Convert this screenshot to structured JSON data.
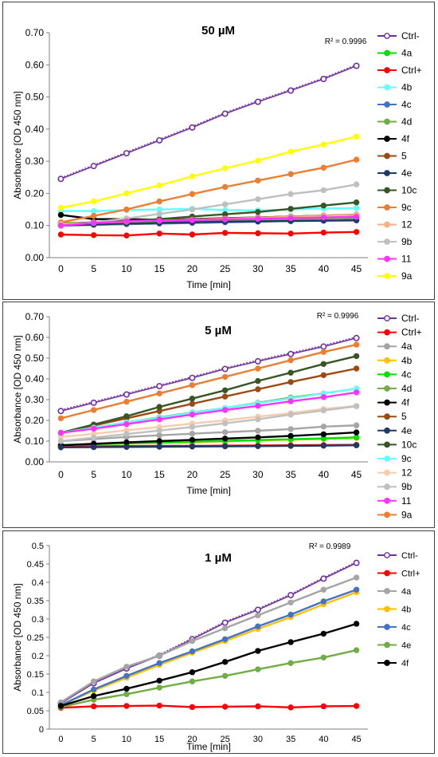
{
  "chart_data": [
    {
      "type": "line",
      "title": "50 µM",
      "annotation": "R² = 0.9996",
      "xlabel": "Time [min]",
      "ylabel": "Absorbance [OD 450 nm]",
      "x": [
        0,
        5,
        10,
        15,
        20,
        25,
        30,
        35,
        40,
        45
      ],
      "xticks": [
        "0",
        "5",
        "10",
        "15",
        "20",
        "25",
        "30",
        "35",
        "40",
        "45"
      ],
      "ylim": [
        0,
        0.7
      ],
      "yticks": [
        "0.00",
        "0.10",
        "0.20",
        "0.30",
        "0.40",
        "0.50",
        "0.60",
        "0.70"
      ],
      "grid": false,
      "legend": "right",
      "series": [
        {
          "name": "Ctrl-",
          "color": "#7030A0",
          "dotted": true,
          "values": [
            0.245,
            0.285,
            0.325,
            0.365,
            0.405,
            0.448,
            0.485,
            0.52,
            0.556,
            0.597
          ]
        },
        {
          "name": "4a",
          "color": "#00E000",
          "values": [
            0.108,
            0.108,
            0.11,
            0.112,
            0.114,
            0.116,
            0.118,
            0.12,
            0.122,
            0.124
          ]
        },
        {
          "name": "Ctrl+",
          "color": "#FF0000",
          "values": [
            0.072,
            0.07,
            0.069,
            0.075,
            0.072,
            0.077,
            0.076,
            0.075,
            0.078,
            0.08
          ]
        },
        {
          "name": "4b",
          "color": "#66FFFF",
          "values": [
            0.145,
            0.145,
            0.148,
            0.15,
            0.152,
            0.148,
            0.147,
            0.15,
            0.153,
            0.154
          ]
        },
        {
          "name": "4c",
          "color": "#4472C4",
          "values": [
            0.1,
            0.102,
            0.104,
            0.106,
            0.108,
            0.11,
            0.112,
            0.114,
            0.116,
            0.118
          ]
        },
        {
          "name": "4d",
          "color": "#70AD47",
          "values": [
            0.1,
            0.102,
            0.105,
            0.108,
            0.11,
            0.113,
            0.116,
            0.119,
            0.122,
            0.125
          ]
        },
        {
          "name": "4f",
          "color": "#000000",
          "values": [
            0.133,
            0.12,
            0.12,
            0.118,
            0.12,
            0.123,
            0.125,
            0.128,
            0.13,
            0.132
          ]
        },
        {
          "name": "5",
          "color": "#9C4A14",
          "values": [
            0.105,
            0.11,
            0.113,
            0.116,
            0.119,
            0.122,
            0.125,
            0.128,
            0.131,
            0.134
          ]
        },
        {
          "name": "4e",
          "color": "#1F3864",
          "values": [
            0.1,
            0.103,
            0.106,
            0.108,
            0.11,
            0.112,
            0.113,
            0.114,
            0.115,
            0.116
          ]
        },
        {
          "name": "10c",
          "color": "#375623",
          "values": [
            0.105,
            0.11,
            0.115,
            0.12,
            0.128,
            0.135,
            0.142,
            0.152,
            0.162,
            0.172
          ]
        },
        {
          "name": "9c",
          "color": "#ED7D31",
          "values": [
            0.11,
            0.13,
            0.15,
            0.175,
            0.198,
            0.22,
            0.24,
            0.26,
            0.28,
            0.305
          ]
        },
        {
          "name": "12",
          "color": "#F4B183",
          "values": [
            0.105,
            0.108,
            0.112,
            0.115,
            0.118,
            0.121,
            0.124,
            0.127,
            0.13,
            0.133
          ]
        },
        {
          "name": "9b",
          "color": "#BFBFBF",
          "values": [
            0.1,
            0.11,
            0.122,
            0.136,
            0.15,
            0.166,
            0.182,
            0.198,
            0.21,
            0.228
          ]
        },
        {
          "name": "11",
          "color": "#FF33FF",
          "values": [
            0.1,
            0.108,
            0.113,
            0.115,
            0.117,
            0.119,
            0.121,
            0.123,
            0.125,
            0.127
          ]
        },
        {
          "name": "9a",
          "color": "#FFFF00",
          "values": [
            0.155,
            0.175,
            0.2,
            0.225,
            0.253,
            0.278,
            0.302,
            0.33,
            0.352,
            0.377
          ]
        }
      ]
    },
    {
      "type": "line",
      "title": "5 µM",
      "annotation": "R² = 0.9996",
      "xlabel": "Time [min]",
      "ylabel": "Absorbance [OD 450 nm]",
      "x": [
        0,
        5,
        10,
        15,
        20,
        25,
        30,
        35,
        40,
        45
      ],
      "xticks": [
        "0",
        "5",
        "10",
        "15",
        "20",
        "25",
        "30",
        "35",
        "40",
        "45"
      ],
      "ylim": [
        0,
        0.7
      ],
      "yticks": [
        "0.00",
        "0.10",
        "0.20",
        "0.30",
        "0.40",
        "0.50",
        "0.60",
        "0.70"
      ],
      "grid": false,
      "legend": "right",
      "series": [
        {
          "name": "Ctrl-",
          "color": "#7030A0",
          "dotted": true,
          "values": [
            0.245,
            0.285,
            0.325,
            0.365,
            0.405,
            0.448,
            0.485,
            0.52,
            0.556,
            0.597
          ]
        },
        {
          "name": "Ctrl+",
          "color": "#FF0000",
          "values": [
            0.075,
            0.075,
            0.076,
            0.077,
            0.077,
            0.078,
            0.079,
            0.08,
            0.081,
            0.082
          ]
        },
        {
          "name": "4a",
          "color": "#A5A5A5",
          "values": [
            0.1,
            0.11,
            0.12,
            0.128,
            0.136,
            0.143,
            0.15,
            0.158,
            0.17,
            0.176
          ]
        },
        {
          "name": "4b",
          "color": "#FFC000",
          "values": [
            0.08,
            0.085,
            0.088,
            0.092,
            0.095,
            0.099,
            0.103,
            0.107,
            0.111,
            0.115
          ]
        },
        {
          "name": "4c",
          "color": "#00E000",
          "values": [
            0.08,
            0.085,
            0.089,
            0.093,
            0.097,
            0.101,
            0.105,
            0.109,
            0.113,
            0.118
          ]
        },
        {
          "name": "4d",
          "color": "#70AD47",
          "values": [
            0.14,
            0.165,
            0.19,
            0.215,
            0.238,
            0.26,
            0.285,
            0.31,
            0.33,
            0.353
          ]
        },
        {
          "name": "4f",
          "color": "#000000",
          "values": [
            0.08,
            0.087,
            0.094,
            0.1,
            0.106,
            0.112,
            0.118,
            0.125,
            0.133,
            0.142
          ]
        },
        {
          "name": "5",
          "color": "#9C4A14",
          "values": [
            0.14,
            0.175,
            0.21,
            0.245,
            0.28,
            0.315,
            0.35,
            0.385,
            0.418,
            0.45
          ]
        },
        {
          "name": "4e",
          "color": "#1F3864",
          "values": [
            0.07,
            0.071,
            0.072,
            0.073,
            0.074,
            0.075,
            0.076,
            0.077,
            0.078,
            0.08
          ]
        },
        {
          "name": "10c",
          "color": "#375623",
          "values": [
            0.14,
            0.18,
            0.22,
            0.265,
            0.305,
            0.345,
            0.39,
            0.43,
            0.472,
            0.51
          ]
        },
        {
          "name": "9c",
          "color": "#66FFFF",
          "values": [
            0.14,
            0.165,
            0.19,
            0.213,
            0.237,
            0.26,
            0.283,
            0.306,
            0.33,
            0.353
          ]
        },
        {
          "name": "12",
          "color": "#F8CBAD",
          "values": [
            0.12,
            0.135,
            0.152,
            0.168,
            0.185,
            0.2,
            0.218,
            0.235,
            0.255,
            0.27
          ]
        },
        {
          "name": "9b",
          "color": "#C0C0C0",
          "values": [
            0.1,
            0.117,
            0.134,
            0.151,
            0.168,
            0.186,
            0.205,
            0.228,
            0.248,
            0.268
          ]
        },
        {
          "name": "11",
          "color": "#FF33FF",
          "values": [
            0.14,
            0.16,
            0.182,
            0.205,
            0.228,
            0.25,
            0.27,
            0.292,
            0.312,
            0.335
          ]
        },
        {
          "name": "9a",
          "color": "#ED7D31",
          "values": [
            0.21,
            0.25,
            0.29,
            0.33,
            0.37,
            0.41,
            0.45,
            0.49,
            0.53,
            0.565
          ]
        }
      ]
    },
    {
      "type": "line",
      "title": "1 µM",
      "annotation": "R² = 0.9989",
      "xlabel": "Time [min]",
      "ylabel": "Absorbance [OD 450 nm]",
      "x": [
        0,
        5,
        10,
        15,
        20,
        25,
        30,
        35,
        40,
        45
      ],
      "xticks": [
        "0",
        "5",
        "10",
        "15",
        "20",
        "25",
        "30",
        "35",
        "40",
        "45"
      ],
      "ylim": [
        0,
        0.5
      ],
      "yticks": [
        "0",
        "0.05",
        "0.1",
        "0.15",
        "0.2",
        "0.25",
        "0.3",
        "0.35",
        "0.4",
        "0.45",
        "0.5"
      ],
      "grid": false,
      "legend": "right",
      "series": [
        {
          "name": "Ctrl-",
          "color": "#7030A0",
          "dotted": true,
          "values": [
            0.07,
            0.125,
            0.165,
            0.2,
            0.245,
            0.29,
            0.325,
            0.365,
            0.41,
            0.453
          ]
        },
        {
          "name": "Ctrl+",
          "color": "#FF0000",
          "values": [
            0.058,
            0.062,
            0.063,
            0.064,
            0.06,
            0.061,
            0.062,
            0.059,
            0.062,
            0.063
          ]
        },
        {
          "name": "4a",
          "color": "#A5A5A5",
          "values": [
            0.073,
            0.13,
            0.17,
            0.2,
            0.24,
            0.275,
            0.31,
            0.345,
            0.38,
            0.413
          ]
        },
        {
          "name": "4b",
          "color": "#FFC000",
          "values": [
            0.065,
            0.105,
            0.14,
            0.175,
            0.208,
            0.24,
            0.273,
            0.305,
            0.34,
            0.373
          ]
        },
        {
          "name": "4c",
          "color": "#4472C4",
          "values": [
            0.065,
            0.108,
            0.145,
            0.18,
            0.212,
            0.245,
            0.28,
            0.312,
            0.348,
            0.38
          ]
        },
        {
          "name": "4e",
          "color": "#70AD47",
          "values": [
            0.06,
            0.08,
            0.095,
            0.113,
            0.13,
            0.145,
            0.163,
            0.18,
            0.195,
            0.215
          ]
        },
        {
          "name": "4f",
          "color": "#000000",
          "values": [
            0.063,
            0.09,
            0.11,
            0.132,
            0.155,
            0.183,
            0.213,
            0.237,
            0.26,
            0.287
          ]
        }
      ]
    }
  ]
}
